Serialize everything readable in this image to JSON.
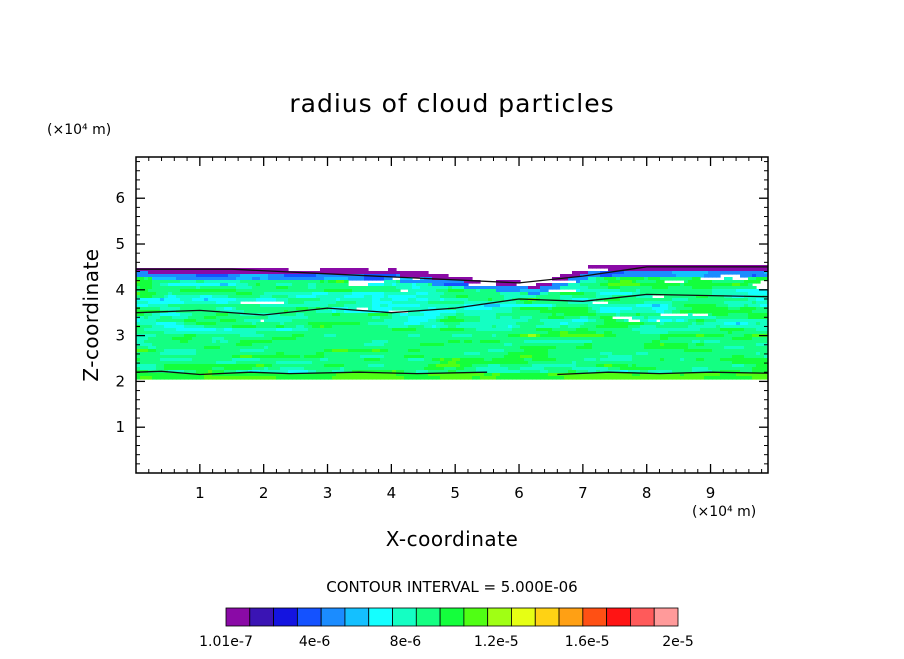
{
  "chart_data": {
    "type": "heatmap",
    "title": "radius of cloud particles",
    "xlabel": "X-coordinate",
    "ylabel": "Z-coordinate",
    "x_unit": "(×10⁴ m)",
    "y_unit": "(×10⁴ m)",
    "xlim": [
      0,
      9.9
    ],
    "ylim": [
      0,
      6.9
    ],
    "xticks": [
      "1",
      "2",
      "3",
      "4",
      "5",
      "6",
      "7",
      "8",
      "9"
    ],
    "yticks": [
      "1",
      "2",
      "3",
      "4",
      "5",
      "6"
    ],
    "contour_interval_text": "CONTOUR INTERVAL = 5.000E-06",
    "colorbar": {
      "min": 1.01e-07,
      "max": 2e-05,
      "labels": [
        "1.01e-7",
        "4e-6",
        "8e-6",
        "1.2e-5",
        "1.6e-5",
        "2e-5"
      ],
      "colors": [
        "#8a0aa6",
        "#3a14b4",
        "#1414e0",
        "#1452ff",
        "#1b8cff",
        "#14c0ff",
        "#14ffff",
        "#14ffc3",
        "#14ff82",
        "#14ff3c",
        "#50ff14",
        "#a0ff14",
        "#e6ff14",
        "#ffd214",
        "#ffa014",
        "#ff5014",
        "#ff1414",
        "#ff5a5a",
        "#ff9a9a"
      ]
    },
    "cloud_layer": {
      "z_bottom": 2.05,
      "z_top_left": 4.5,
      "z_top_middle": 4.15,
      "z_top_right": 4.55
    },
    "grid": false
  }
}
